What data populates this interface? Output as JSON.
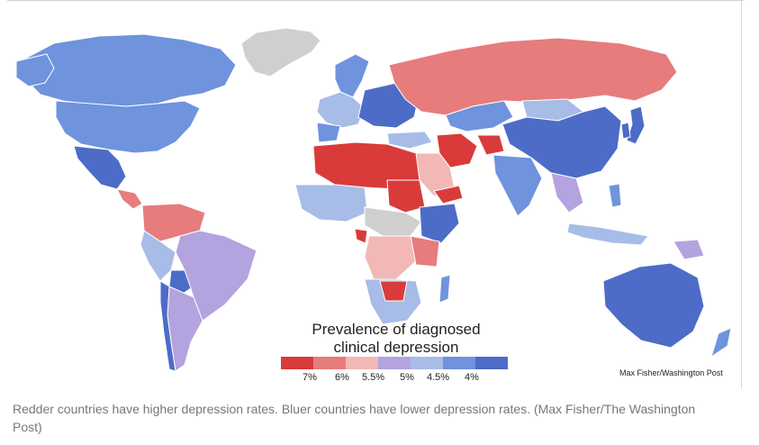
{
  "map": {
    "legend_title_line1": "Prevalence of diagnosed",
    "legend_title_line2": "clinical depression",
    "scale": [
      {
        "label": "7%",
        "color": "#d93b3b"
      },
      {
        "label": "6%",
        "color": "#e77c7c"
      },
      {
        "label": "5.5%",
        "color": "#f1b8b6"
      },
      {
        "label": "5%",
        "color": "#b3a3df"
      },
      {
        "label": "4.5%",
        "color": "#a7bce6"
      },
      {
        "label": "4%",
        "color": "#6f93dd"
      },
      {
        "label": "",
        "color": "#4d6cc7"
      }
    ],
    "no_data_color": "#cfcfcf",
    "credit": "Max Fisher/Washington Post"
  },
  "caption": "Redder countries have higher depression rates. Bluer countries have lower depression rates. (Max Fisher/The Washington Post)"
}
